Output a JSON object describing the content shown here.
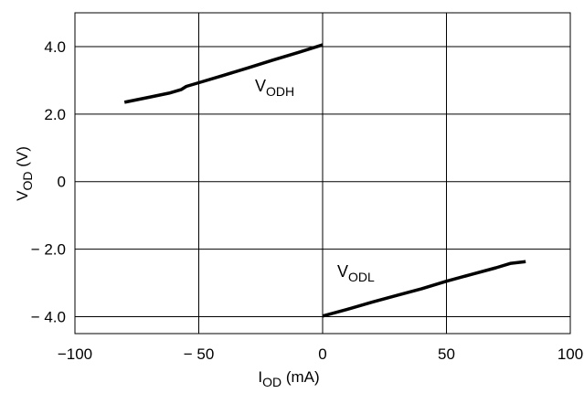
{
  "chart_data": {
    "type": "line",
    "xlim": [
      -100,
      100
    ],
    "ylim": [
      -4.5,
      5
    ],
    "x_ticks": [
      -100,
      -50,
      0,
      50,
      100
    ],
    "x_tick_labels": [
      "−100",
      "− 50",
      "0",
      "50",
      "100"
    ],
    "y_ticks": [
      4,
      2,
      0,
      -2,
      -4
    ],
    "y_tick_labels": [
      "4.0",
      "2.0",
      "0",
      "− 2.0",
      "− 4.0"
    ],
    "grid": true,
    "xlabel": {
      "main": "I",
      "sub": "OD",
      "unit": " (mA)"
    },
    "ylabel": {
      "main": "V",
      "sub": "OD",
      "unit": " (V)"
    },
    "series": [
      {
        "name": "VODH",
        "label_main": "V",
        "label_sub": "ODH",
        "x": [
          -80,
          -70,
          -62,
          -57,
          -55,
          -50,
          -40,
          -30,
          -20,
          -10,
          0
        ],
        "y": [
          2.35,
          2.5,
          2.62,
          2.73,
          2.82,
          2.93,
          3.15,
          3.37,
          3.6,
          3.82,
          4.05
        ]
      },
      {
        "name": "VODL",
        "label_main": "V",
        "label_sub": "ODL",
        "x": [
          0,
          10,
          20,
          30,
          40,
          50,
          60,
          70,
          76,
          82
        ],
        "y": [
          -3.98,
          -3.78,
          -3.57,
          -3.37,
          -3.17,
          -2.95,
          -2.75,
          -2.55,
          -2.42,
          -2.37
        ]
      }
    ]
  }
}
